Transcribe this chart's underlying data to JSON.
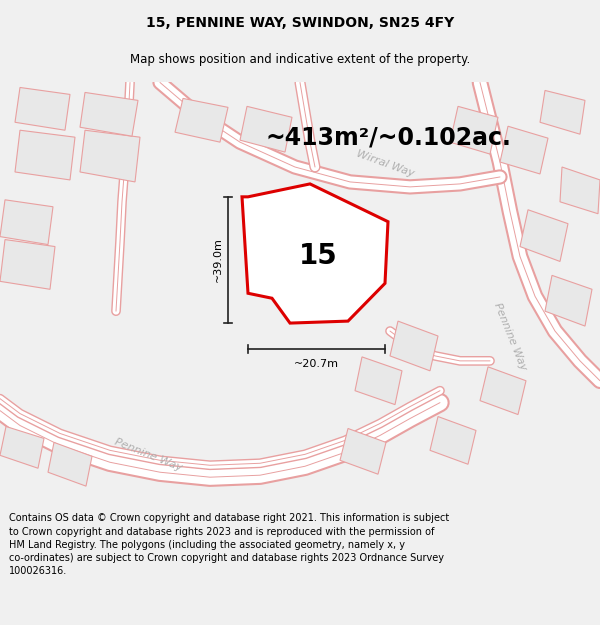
{
  "title_line1": "15, PENNINE WAY, SWINDON, SN25 4FY",
  "title_line2": "Map shows position and indicative extent of the property.",
  "area_text": "~413m²/~0.102ac.",
  "label_number": "15",
  "dim_width": "~20.7m",
  "dim_height": "~39.0m",
  "road_label_pennine_bottom": "Pennine Way",
  "road_label_wirral": "Wirral Way",
  "road_label_pennine_right": "Pennine Way",
  "footer_text": "Contains OS data © Crown copyright and database right 2021. This information is subject to Crown copyright and database rights 2023 and is reproduced with the permission of HM Land Registry. The polygons (including the associated geometry, namely x, y co-ordinates) are subject to Crown copyright and database rights 2023 Ordnance Survey 100026316.",
  "bg_color": "#f0f0f0",
  "map_bg": "#ffffff",
  "plot_outline_color": "#dd0000",
  "neighbor_outline_color": "#e8a0a0",
  "neighbor_fill_color": "#e8e8e8",
  "road_stroke_color": "#e8a0a0",
  "road_fill_color": "#ffffff",
  "dim_color": "#222222",
  "road_label_color": "#b0b0b0",
  "title_fontsize": 10,
  "subtitle_fontsize": 8.5,
  "area_fontsize": 17,
  "label_fontsize": 20,
  "dim_fontsize": 8,
  "road_fontsize": 8,
  "footer_fontsize": 7
}
